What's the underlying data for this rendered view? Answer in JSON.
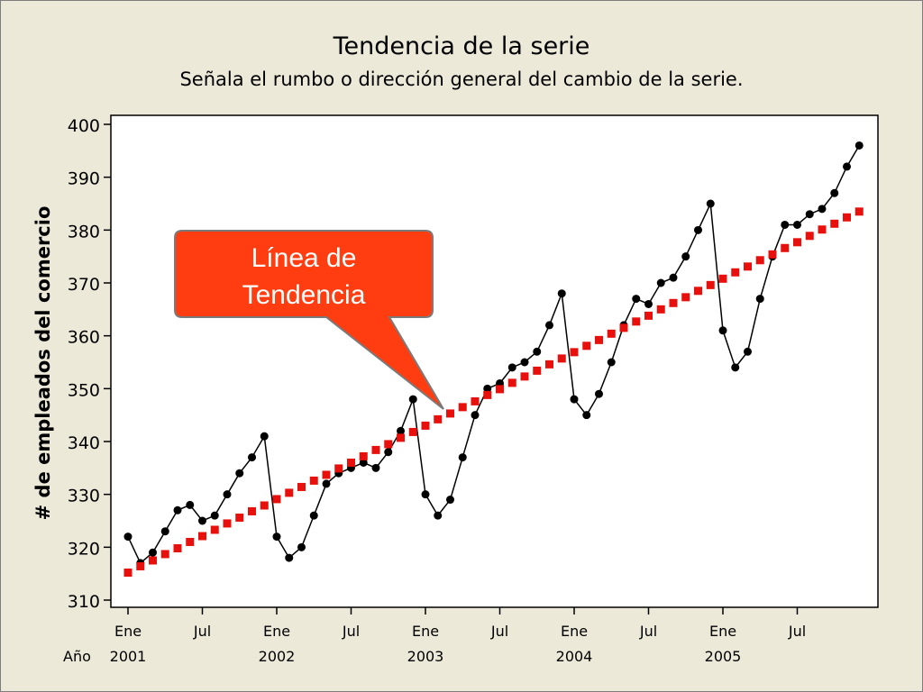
{
  "chart_data": {
    "type": "line",
    "title": "Tendencia de la serie",
    "subtitle": "Señala el rumbo o dirección general del cambio de la serie.",
    "ylabel": "# de empleados del comercio",
    "ylim": [
      310,
      400
    ],
    "yticks": [
      310,
      320,
      330,
      340,
      350,
      360,
      370,
      380,
      390,
      400
    ],
    "x_tick_labels": [
      "Ene",
      "Jul",
      "Ene",
      "Jul",
      "Ene",
      "Jul",
      "Ene",
      "Jul",
      "Ene",
      "Jul"
    ],
    "x_tick_index": [
      0,
      6,
      12,
      18,
      24,
      30,
      36,
      42,
      48,
      54
    ],
    "year_row_label": "Año",
    "year_labels": [
      "2001",
      "2002",
      "2003",
      "2004",
      "2005"
    ],
    "year_tick_index": [
      0,
      12,
      24,
      36,
      48
    ],
    "grid": false,
    "series": [
      {
        "color": "#000000",
        "marker": "circle",
        "values": [
          322,
          317,
          319,
          323,
          327,
          328,
          325,
          326,
          330,
          334,
          337,
          341,
          322,
          318,
          320,
          326,
          332,
          334,
          335,
          336,
          335,
          338,
          342,
          348,
          330,
          326,
          329,
          337,
          345,
          350,
          351,
          354,
          355,
          357,
          362,
          368,
          348,
          345,
          349,
          355,
          362,
          367,
          366,
          370,
          371,
          375,
          380,
          385,
          361,
          354,
          357,
          367,
          375,
          381,
          381,
          383,
          384,
          387,
          392,
          396
        ]
      },
      {
        "color": "#e8100c",
        "marker": "square",
        "values": [
          315.2,
          316.4,
          317.5,
          318.7,
          319.8,
          321.0,
          322.1,
          323.3,
          324.5,
          325.6,
          326.8,
          327.9,
          329.1,
          330.3,
          331.4,
          332.6,
          333.7,
          334.9,
          336.0,
          337.2,
          338.4,
          339.5,
          340.7,
          341.8,
          343.0,
          344.2,
          345.3,
          346.5,
          347.6,
          348.8,
          349.9,
          351.1,
          352.3,
          353.4,
          354.6,
          355.7,
          356.9,
          358.1,
          359.2,
          360.4,
          361.5,
          362.7,
          363.8,
          365.0,
          366.2,
          367.3,
          368.5,
          369.6,
          370.8,
          372.0,
          373.1,
          374.3,
          375.4,
          376.6,
          377.7,
          378.9,
          380.1,
          381.2,
          382.4,
          383.5
        ]
      }
    ],
    "annotation": {
      "text_line1": "Línea de",
      "text_line2": "Tendencia",
      "fill": "#ff3d10"
    }
  }
}
